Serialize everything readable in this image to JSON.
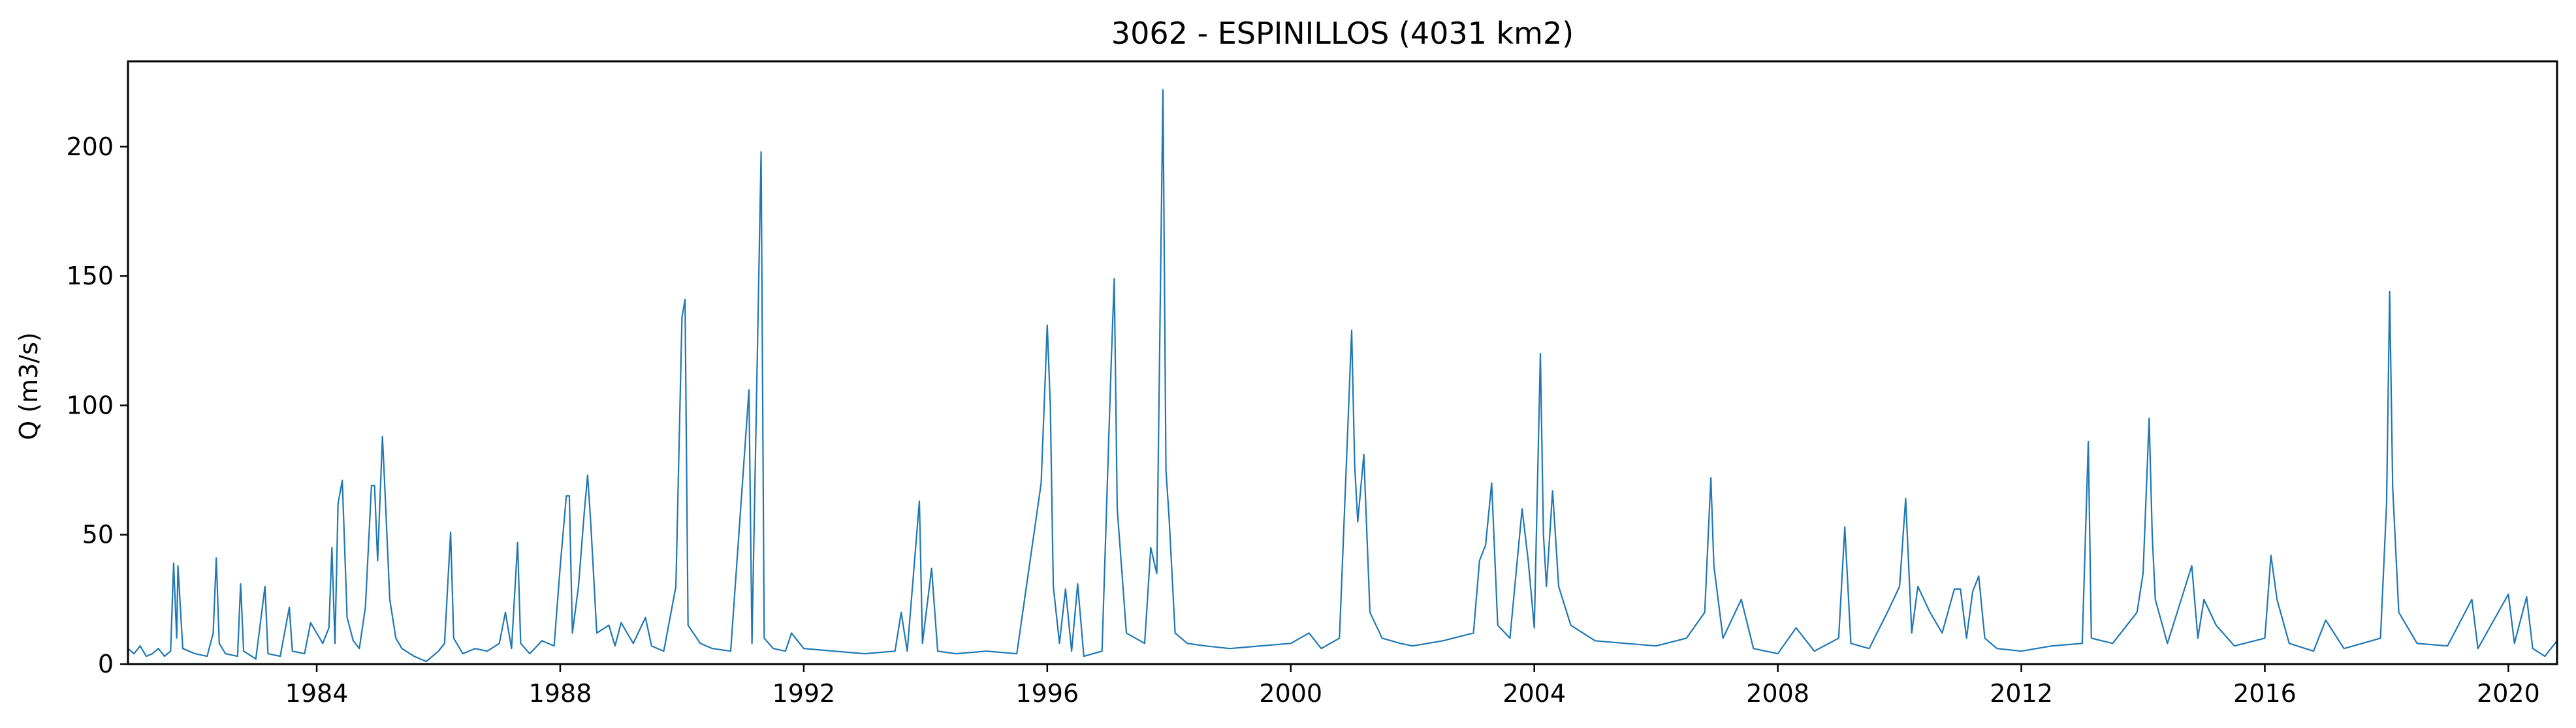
{
  "chart_data": {
    "type": "line",
    "title": "3062 - ESPINILLOS (4031 km2)",
    "xlabel": "",
    "ylabel": "Q (m3/s)",
    "xlim": [
      1980.9,
      2020.8
    ],
    "ylim": [
      0,
      233
    ],
    "grid": false,
    "legend": "none",
    "x_ticks": [
      1984,
      1988,
      1992,
      1996,
      2000,
      2004,
      2008,
      2012,
      2016,
      2020
    ],
    "y_ticks": [
      0,
      50,
      100,
      150,
      200
    ],
    "series": [
      {
        "color": "#1f77b4",
        "points": [
          [
            1980.9,
            6
          ],
          [
            1981.0,
            4
          ],
          [
            1981.1,
            7
          ],
          [
            1981.2,
            3
          ],
          [
            1981.3,
            4
          ],
          [
            1981.4,
            6
          ],
          [
            1981.5,
            3
          ],
          [
            1981.6,
            5
          ],
          [
            1981.65,
            39
          ],
          [
            1981.7,
            10
          ],
          [
            1981.72,
            38
          ],
          [
            1981.8,
            6
          ],
          [
            1982.0,
            4
          ],
          [
            1982.2,
            3
          ],
          [
            1982.3,
            12
          ],
          [
            1982.35,
            41
          ],
          [
            1982.4,
            8
          ],
          [
            1982.5,
            4
          ],
          [
            1982.7,
            3
          ],
          [
            1982.75,
            31
          ],
          [
            1982.8,
            5
          ],
          [
            1983.0,
            2
          ],
          [
            1983.15,
            30
          ],
          [
            1983.2,
            4
          ],
          [
            1983.4,
            3
          ],
          [
            1983.55,
            22
          ],
          [
            1983.6,
            5
          ],
          [
            1983.8,
            4
          ],
          [
            1983.9,
            16
          ],
          [
            1984.0,
            12
          ],
          [
            1984.1,
            8
          ],
          [
            1984.2,
            14
          ],
          [
            1984.25,
            45
          ],
          [
            1984.3,
            8
          ],
          [
            1984.35,
            62
          ],
          [
            1984.42,
            71
          ],
          [
            1984.5,
            18
          ],
          [
            1984.6,
            9
          ],
          [
            1984.7,
            6
          ],
          [
            1984.8,
            22
          ],
          [
            1984.9,
            69
          ],
          [
            1984.95,
            69
          ],
          [
            1985.0,
            40
          ],
          [
            1985.08,
            88
          ],
          [
            1985.12,
            68
          ],
          [
            1985.2,
            25
          ],
          [
            1985.3,
            10
          ],
          [
            1985.4,
            6
          ],
          [
            1985.6,
            3
          ],
          [
            1985.8,
            1
          ],
          [
            1986.0,
            5
          ],
          [
            1986.1,
            8
          ],
          [
            1986.2,
            51
          ],
          [
            1986.25,
            10
          ],
          [
            1986.4,
            4
          ],
          [
            1986.6,
            6
          ],
          [
            1986.8,
            5
          ],
          [
            1987.0,
            8
          ],
          [
            1987.1,
            20
          ],
          [
            1987.2,
            6
          ],
          [
            1987.3,
            47
          ],
          [
            1987.35,
            8
          ],
          [
            1987.5,
            4
          ],
          [
            1987.7,
            9
          ],
          [
            1987.9,
            7
          ],
          [
            1988.0,
            38
          ],
          [
            1988.1,
            65
          ],
          [
            1988.15,
            65
          ],
          [
            1988.2,
            12
          ],
          [
            1988.3,
            30
          ],
          [
            1988.4,
            60
          ],
          [
            1988.45,
            73
          ],
          [
            1988.5,
            55
          ],
          [
            1988.6,
            12
          ],
          [
            1988.8,
            15
          ],
          [
            1988.9,
            7
          ],
          [
            1989.0,
            16
          ],
          [
            1989.2,
            8
          ],
          [
            1989.4,
            18
          ],
          [
            1989.5,
            7
          ],
          [
            1989.7,
            5
          ],
          [
            1989.9,
            30
          ],
          [
            1990.0,
            134
          ],
          [
            1990.05,
            141
          ],
          [
            1990.1,
            15
          ],
          [
            1990.3,
            8
          ],
          [
            1990.5,
            6
          ],
          [
            1990.8,
            5
          ],
          [
            1991.1,
            106
          ],
          [
            1991.15,
            8
          ],
          [
            1991.3,
            198
          ],
          [
            1991.35,
            10
          ],
          [
            1991.5,
            6
          ],
          [
            1991.7,
            5
          ],
          [
            1991.8,
            12
          ],
          [
            1992.0,
            6
          ],
          [
            1992.5,
            5
          ],
          [
            1993.0,
            4
          ],
          [
            1993.5,
            5
          ],
          [
            1993.6,
            20
          ],
          [
            1993.7,
            5
          ],
          [
            1993.9,
            63
          ],
          [
            1993.95,
            8
          ],
          [
            1994.1,
            37
          ],
          [
            1994.2,
            5
          ],
          [
            1994.5,
            4
          ],
          [
            1995.0,
            5
          ],
          [
            1995.5,
            4
          ],
          [
            1995.9,
            70
          ],
          [
            1996.0,
            131
          ],
          [
            1996.05,
            100
          ],
          [
            1996.1,
            30
          ],
          [
            1996.2,
            8
          ],
          [
            1996.3,
            29
          ],
          [
            1996.4,
            5
          ],
          [
            1996.5,
            31
          ],
          [
            1996.6,
            3
          ],
          [
            1996.9,
            5
          ],
          [
            1997.0,
            80
          ],
          [
            1997.05,
            116
          ],
          [
            1997.1,
            149
          ],
          [
            1997.15,
            60
          ],
          [
            1997.3,
            12
          ],
          [
            1997.6,
            8
          ],
          [
            1997.7,
            45
          ],
          [
            1997.8,
            35
          ],
          [
            1997.9,
            222
          ],
          [
            1997.95,
            75
          ],
          [
            1998.0,
            57
          ],
          [
            1998.1,
            12
          ],
          [
            1998.3,
            8
          ],
          [
            1998.6,
            7
          ],
          [
            1999.0,
            6
          ],
          [
            1999.5,
            7
          ],
          [
            2000.0,
            8
          ],
          [
            2000.3,
            12
          ],
          [
            2000.5,
            6
          ],
          [
            2000.8,
            10
          ],
          [
            2001.0,
            129
          ],
          [
            2001.05,
            77
          ],
          [
            2001.1,
            55
          ],
          [
            2001.2,
            81
          ],
          [
            2001.3,
            20
          ],
          [
            2001.5,
            10
          ],
          [
            2001.8,
            8
          ],
          [
            2002.0,
            7
          ],
          [
            2002.5,
            9
          ],
          [
            2003.0,
            12
          ],
          [
            2003.1,
            40
          ],
          [
            2003.2,
            46
          ],
          [
            2003.3,
            70
          ],
          [
            2003.4,
            15
          ],
          [
            2003.6,
            10
          ],
          [
            2003.8,
            60
          ],
          [
            2003.9,
            40
          ],
          [
            2004.0,
            14
          ],
          [
            2004.1,
            120
          ],
          [
            2004.15,
            50
          ],
          [
            2004.2,
            30
          ],
          [
            2004.3,
            67
          ],
          [
            2004.4,
            30
          ],
          [
            2004.6,
            15
          ],
          [
            2004.8,
            12
          ],
          [
            2005.0,
            9
          ],
          [
            2005.5,
            8
          ],
          [
            2006.0,
            7
          ],
          [
            2006.5,
            10
          ],
          [
            2006.8,
            20
          ],
          [
            2006.9,
            72
          ],
          [
            2006.95,
            38
          ],
          [
            2007.1,
            10
          ],
          [
            2007.4,
            25
          ],
          [
            2007.6,
            6
          ],
          [
            2008.0,
            4
          ],
          [
            2008.3,
            14
          ],
          [
            2008.6,
            5
          ],
          [
            2009.0,
            10
          ],
          [
            2009.1,
            53
          ],
          [
            2009.2,
            8
          ],
          [
            2009.5,
            6
          ],
          [
            2009.8,
            20
          ],
          [
            2010.0,
            30
          ],
          [
            2010.1,
            64
          ],
          [
            2010.2,
            12
          ],
          [
            2010.3,
            30
          ],
          [
            2010.5,
            20
          ],
          [
            2010.7,
            12
          ],
          [
            2010.9,
            29
          ],
          [
            2011.0,
            29
          ],
          [
            2011.1,
            10
          ],
          [
            2011.2,
            28
          ],
          [
            2011.3,
            34
          ],
          [
            2011.4,
            10
          ],
          [
            2011.6,
            6
          ],
          [
            2012.0,
            5
          ],
          [
            2012.5,
            7
          ],
          [
            2013.0,
            8
          ],
          [
            2013.1,
            86
          ],
          [
            2013.15,
            10
          ],
          [
            2013.5,
            8
          ],
          [
            2013.9,
            20
          ],
          [
            2014.0,
            35
          ],
          [
            2014.1,
            95
          ],
          [
            2014.15,
            50
          ],
          [
            2014.2,
            25
          ],
          [
            2014.4,
            8
          ],
          [
            2014.8,
            38
          ],
          [
            2014.9,
            10
          ],
          [
            2015.0,
            25
          ],
          [
            2015.2,
            15
          ],
          [
            2015.5,
            7
          ],
          [
            2016.0,
            10
          ],
          [
            2016.1,
            42
          ],
          [
            2016.2,
            25
          ],
          [
            2016.4,
            8
          ],
          [
            2016.8,
            5
          ],
          [
            2017.0,
            17
          ],
          [
            2017.3,
            6
          ],
          [
            2017.6,
            8
          ],
          [
            2017.9,
            10
          ],
          [
            2018.0,
            62
          ],
          [
            2018.05,
            144
          ],
          [
            2018.1,
            68
          ],
          [
            2018.2,
            20
          ],
          [
            2018.5,
            8
          ],
          [
            2019.0,
            7
          ],
          [
            2019.4,
            25
          ],
          [
            2019.5,
            6
          ],
          [
            2020.0,
            27
          ],
          [
            2020.1,
            8
          ],
          [
            2020.3,
            26
          ],
          [
            2020.4,
            6
          ],
          [
            2020.6,
            3
          ],
          [
            2020.8,
            9
          ]
        ]
      }
    ]
  }
}
